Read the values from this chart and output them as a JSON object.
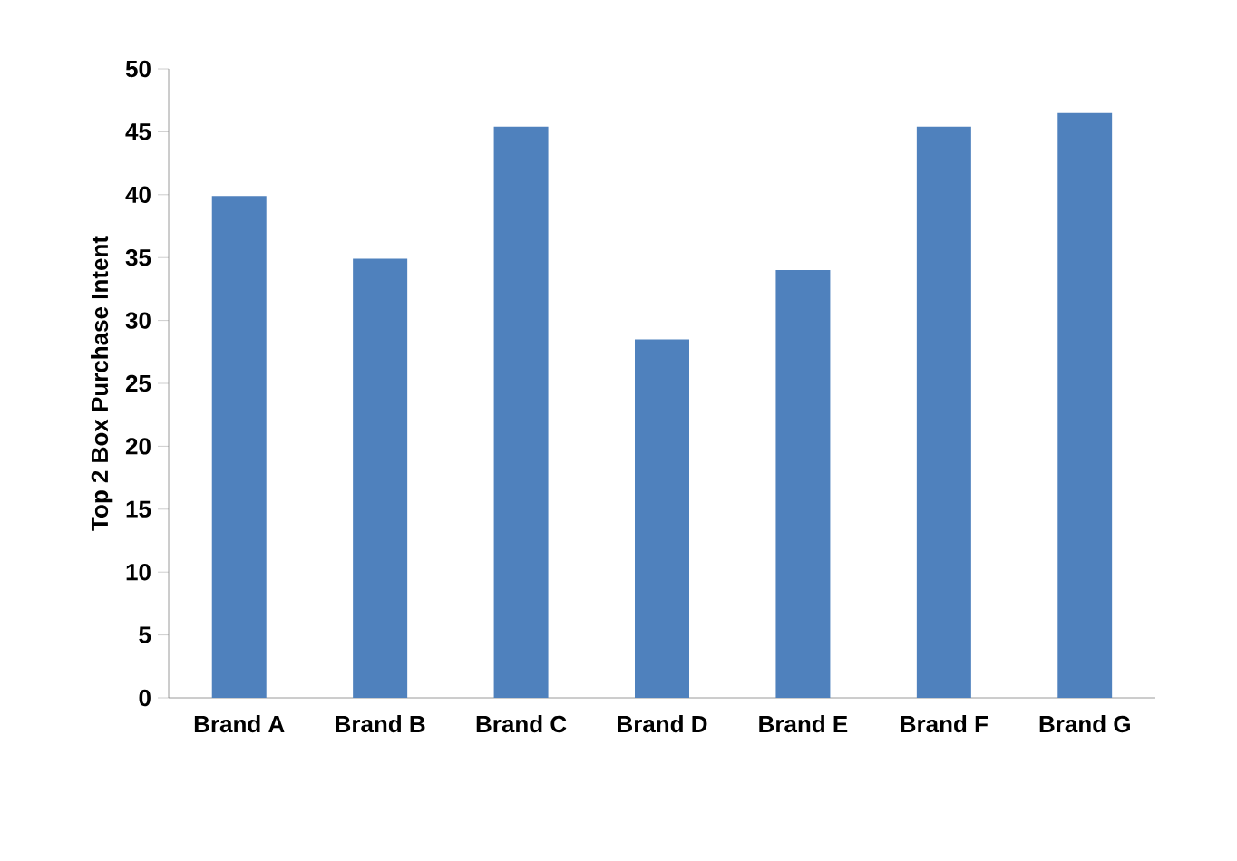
{
  "chart_data": {
    "type": "bar",
    "ylabel": "Top 2 Box Purchase Intent",
    "categories": [
      "Brand A",
      "Brand B",
      "Brand C",
      "Brand D",
      "Brand E",
      "Brand F",
      "Brand G"
    ],
    "values": [
      39.9,
      34.9,
      45.4,
      28.5,
      34.0,
      45.4,
      46.5
    ],
    "color": "#4f81bd",
    "ylim": [
      0,
      50
    ],
    "yticks": [
      0,
      5,
      10,
      15,
      20,
      25,
      30,
      35,
      40,
      45,
      50
    ]
  }
}
